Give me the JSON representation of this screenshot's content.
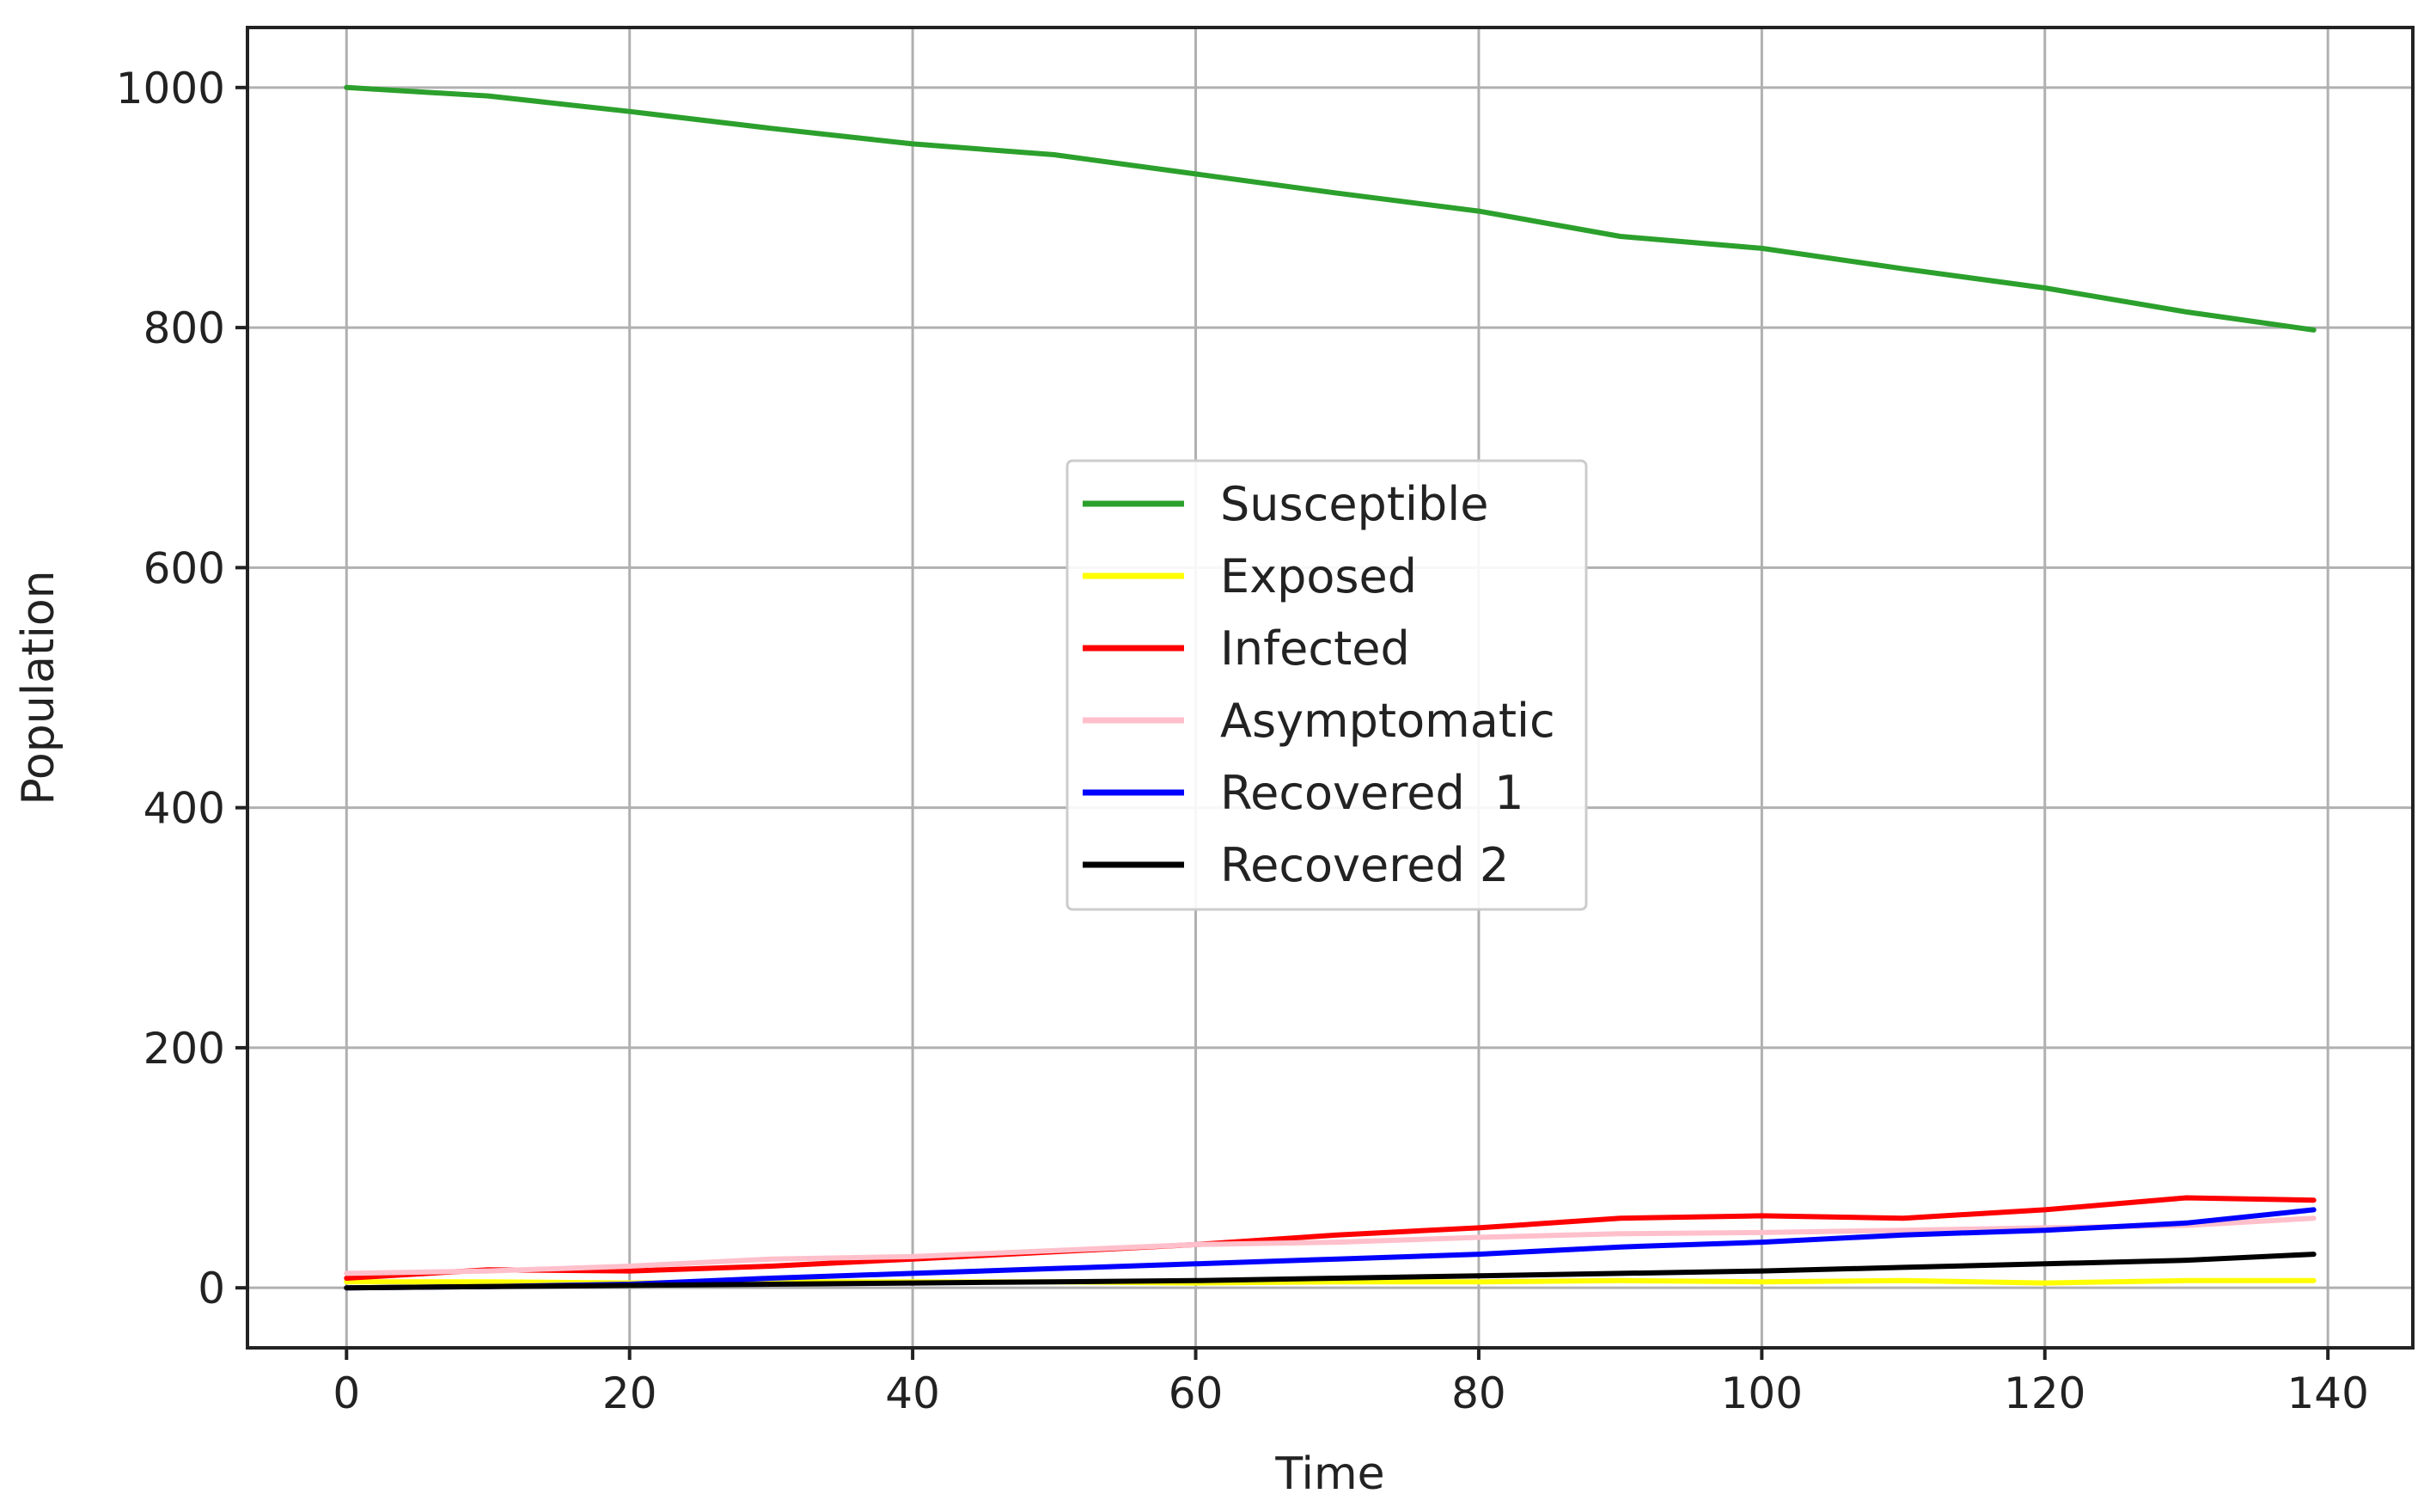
{
  "chart_data": {
    "type": "line",
    "title": "",
    "xlabel": "Time",
    "ylabel": "Population",
    "xlim": [
      -7,
      146
    ],
    "ylim": [
      -50,
      1050
    ],
    "x_ticks": [
      0,
      20,
      40,
      60,
      80,
      100,
      120,
      140
    ],
    "y_ticks": [
      0,
      200,
      400,
      600,
      800,
      1000
    ],
    "grid": true,
    "legend_position": "center",
    "x": [
      0,
      10,
      20,
      30,
      40,
      50,
      60,
      70,
      80,
      90,
      100,
      110,
      120,
      130,
      139
    ],
    "series": [
      {
        "name": "Susceptible",
        "color": "#2ca02c",
        "values": [
          1000,
          993,
          980,
          966,
          953,
          944,
          928,
          912,
          897,
          876,
          866,
          849,
          833,
          813,
          798
        ]
      },
      {
        "name": "Exposed",
        "color": "#ffff00",
        "values": [
          5,
          5,
          4,
          5,
          5,
          5,
          4,
          5,
          5,
          6,
          5,
          6,
          4,
          6,
          6
        ]
      },
      {
        "name": "Infected",
        "color": "#ff0000",
        "values": [
          8,
          15,
          14,
          18,
          24,
          30,
          36,
          44,
          50,
          58,
          60,
          58,
          65,
          75,
          73
        ]
      },
      {
        "name": "Asymptomatic",
        "color": "#ffc0cb",
        "values": [
          12,
          14,
          18,
          24,
          26,
          31,
          36,
          38,
          42,
          45,
          46,
          48,
          50,
          52,
          58
        ]
      },
      {
        "name": "Recovered  1",
        "color": "#0000ff",
        "values": [
          0,
          1,
          3,
          8,
          12,
          16,
          20,
          24,
          28,
          34,
          38,
          44,
          48,
          54,
          65
        ]
      },
      {
        "name": "Recovered 2",
        "color": "#000000",
        "values": [
          0,
          1,
          2,
          3,
          4,
          5,
          6,
          8,
          10,
          12,
          14,
          17,
          20,
          23,
          28
        ]
      }
    ]
  }
}
